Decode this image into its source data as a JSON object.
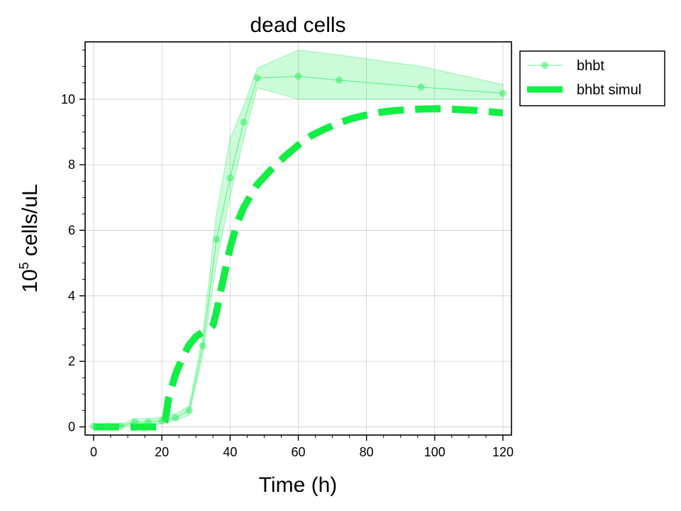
{
  "chart_data": {
    "type": "line",
    "title": "dead cells",
    "xlabel": "Time (h)",
    "ylabel_base": "10",
    "ylabel_exp": "5",
    "ylabel_rest": " cells/uL",
    "xlim": [
      -2.5,
      122.5
    ],
    "ylim": [
      -0.25,
      11.75
    ],
    "xticks": [
      0,
      20,
      40,
      60,
      80,
      100,
      120
    ],
    "yticks": [
      0,
      2,
      4,
      6,
      8,
      10
    ],
    "x_minor_step": 5,
    "y_minor_step": 0.5,
    "grid": true,
    "legend_position": "outside-top-right",
    "series": [
      {
        "name": "bhbt",
        "style": "line-markers",
        "color": "#33ee66",
        "x": [
          0,
          4,
          8,
          12,
          16,
          20,
          24,
          28,
          32,
          36,
          40,
          44,
          48,
          60,
          72,
          96,
          120
        ],
        "y": [
          0.02,
          0.02,
          0.03,
          0.15,
          0.15,
          0.18,
          0.28,
          0.5,
          2.48,
          5.72,
          7.6,
          9.3,
          10.65,
          10.7,
          10.58,
          10.37,
          10.18
        ],
        "lower": [
          0.0,
          0.0,
          0.0,
          0.05,
          0.05,
          0.1,
          0.2,
          0.35,
          2.2,
          5.0,
          7.0,
          8.8,
          10.35,
          10.0,
          10.0,
          10.0,
          10.0
        ],
        "upper": [
          0.05,
          0.05,
          0.06,
          0.25,
          0.25,
          0.3,
          0.4,
          0.65,
          2.8,
          6.5,
          8.8,
          9.8,
          10.95,
          11.5,
          11.35,
          11.0,
          10.45
        ]
      },
      {
        "name": "bhbt simul",
        "style": "dashed",
        "color": "#11ee44",
        "x": [
          0,
          4,
          8,
          12,
          16,
          20,
          21,
          22,
          24,
          26,
          28,
          30,
          32,
          34,
          35,
          36,
          38,
          40,
          42,
          44,
          48,
          52,
          56,
          60,
          64,
          68,
          72,
          76,
          80,
          84,
          88,
          92,
          96,
          100,
          104,
          108,
          112,
          116,
          120
        ],
        "y": [
          0.0,
          0.0,
          0.0,
          0.0,
          0.0,
          0.0,
          0.2,
          0.9,
          1.6,
          2.1,
          2.5,
          2.75,
          2.9,
          3.0,
          3.1,
          3.5,
          4.5,
          5.45,
          6.2,
          6.7,
          7.4,
          7.85,
          8.25,
          8.6,
          8.9,
          9.1,
          9.28,
          9.42,
          9.52,
          9.6,
          9.65,
          9.68,
          9.7,
          9.71,
          9.7,
          9.68,
          9.66,
          9.62,
          9.58
        ]
      }
    ]
  }
}
